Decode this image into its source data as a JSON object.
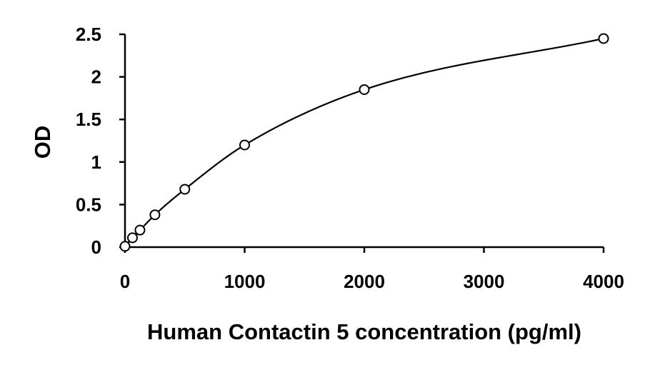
{
  "chart_data": {
    "type": "scatter",
    "xlabel": "Human Contactin 5 concentration (pg/ml)",
    "ylabel": "OD",
    "xlim": [
      0,
      4000
    ],
    "ylim": [
      0,
      2.5
    ],
    "x_ticks": [
      0,
      1000,
      2000,
      3000,
      4000
    ],
    "y_ticks": [
      0,
      0.5,
      1,
      1.5,
      2,
      2.5
    ],
    "x_tick_labels": [
      "0",
      "1000",
      "2000",
      "3000",
      "4000"
    ],
    "y_tick_labels": [
      "0",
      "0.5",
      "1",
      "1.5",
      "2",
      "2.5"
    ],
    "grid": false,
    "legend": "none",
    "marker": "open-circle",
    "fit_line": true,
    "series": [
      {
        "x": [
          0,
          62.5,
          125,
          250,
          500,
          1000,
          2000,
          4000
        ],
        "y": [
          0.01,
          0.11,
          0.2,
          0.38,
          0.68,
          1.2,
          1.85,
          2.45
        ]
      }
    ]
  }
}
